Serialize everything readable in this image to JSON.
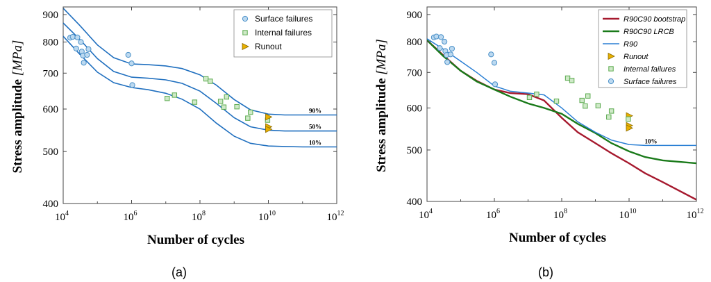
{
  "chart_data": [
    {
      "type": "scatter",
      "panel_label": "(a)",
      "xlabel": "Number of cycles",
      "ylabel": "Stress amplitude",
      "ylabel_unit": "[MPa]",
      "xscale": "log",
      "yscale": "log",
      "xlim": [
        10000,
        1000000000000
      ],
      "ylim": [
        400,
        930
      ],
      "xticks": [
        {
          "base": "10",
          "exp": "4",
          "value": 10000
        },
        {
          "base": "10",
          "exp": "6",
          "value": 1000000
        },
        {
          "base": "10",
          "exp": "8",
          "value": 100000000
        },
        {
          "base": "10",
          "exp": "10",
          "value": 10000000000
        },
        {
          "base": "10",
          "exp": "12",
          "value": 1000000000000
        }
      ],
      "yticks": [
        "400",
        "500",
        "600",
        "700",
        "800",
        "900"
      ],
      "legend_position": "top-right",
      "grid": false,
      "series": [
        {
          "name": "Surface failures",
          "marker": "circle",
          "color": "#4a90c8",
          "points": [
            [
              16000,
              815
            ],
            [
              19000,
              818
            ],
            [
              24000,
              778
            ],
            [
              26000,
              816
            ],
            [
              33000,
              800
            ],
            [
              35000,
              768
            ],
            [
              38000,
              755
            ],
            [
              40000,
              732
            ],
            [
              50000,
              757
            ],
            [
              55000,
              776
            ],
            [
              800000,
              757
            ],
            [
              1000000,
              730
            ],
            [
              1050000,
              665
            ]
          ]
        },
        {
          "name": "Internal failures",
          "marker": "square",
          "color": "#5aaa4e",
          "points": [
            [
              11000000,
              628
            ],
            [
              18000000,
              637
            ],
            [
              70000000,
              618
            ],
            [
              150000000,
              683
            ],
            [
              200000000,
              676
            ],
            [
              400000000,
              620
            ],
            [
              500000000,
              605
            ],
            [
              600000000,
              632
            ],
            [
              1200000000,
              606
            ],
            [
              2500000000,
              577
            ],
            [
              3000000000,
              592
            ],
            [
              9500000000,
              572
            ]
          ]
        },
        {
          "name": "Runout",
          "marker": "triangle-right",
          "color": "#e8b000",
          "points": [
            [
              10000000000,
              580
            ],
            [
              10000000000,
              556
            ],
            [
              10000000000,
              550
            ]
          ]
        }
      ],
      "curves": [
        {
          "label": "90%",
          "color": "#1f6fbf",
          "points": [
            [
              10000,
              925
            ],
            [
              30000,
              860
            ],
            [
              100000,
              790
            ],
            [
              300000,
              748
            ],
            [
              1000000,
              728
            ],
            [
              3000000,
              726
            ],
            [
              10000000,
              722
            ],
            [
              30000000,
              714
            ],
            [
              100000000,
              695
            ],
            [
              300000000,
              665
            ],
            [
              1000000000,
              625
            ],
            [
              3000000000,
              598
            ],
            [
              10000000000,
              587
            ],
            [
              30000000000,
              585
            ],
            [
              100000000000,
              585
            ],
            [
              1000000000000,
              585
            ]
          ]
        },
        {
          "label": "50%",
          "color": "#1f6fbf",
          "points": [
            [
              10000,
              868
            ],
            [
              30000,
              810
            ],
            [
              100000,
              745
            ],
            [
              300000,
              705
            ],
            [
              1000000,
              688
            ],
            [
              3000000,
              685
            ],
            [
              10000000,
              680
            ],
            [
              30000000,
              670
            ],
            [
              100000000,
              648
            ],
            [
              300000000,
              615
            ],
            [
              1000000000,
              578
            ],
            [
              3000000000,
              556
            ],
            [
              10000000000,
              548
            ],
            [
              30000000000,
              546
            ],
            [
              100000000000,
              546
            ],
            [
              1000000000000,
              546
            ]
          ]
        },
        {
          "label": "10%",
          "color": "#1f6fbf",
          "points": [
            [
              10000,
              820
            ],
            [
              30000,
              760
            ],
            [
              100000,
              703
            ],
            [
              300000,
              672
            ],
            [
              1000000,
              658
            ],
            [
              3000000,
              652
            ],
            [
              10000000,
              642
            ],
            [
              30000000,
              626
            ],
            [
              100000000,
              600
            ],
            [
              300000000,
              565
            ],
            [
              1000000000,
              534
            ],
            [
              3000000000,
              518
            ],
            [
              10000000000,
              512
            ],
            [
              30000000000,
              511
            ],
            [
              100000000000,
              510
            ],
            [
              1000000000000,
              510
            ]
          ]
        }
      ]
    },
    {
      "type": "line",
      "panel_label": "(b)",
      "xlabel": "Number of cycles",
      "ylabel": "Stress amplitude",
      "ylabel_unit": "[MPa]",
      "xscale": "log",
      "yscale": "log",
      "xlim": [
        10000,
        1000000000000
      ],
      "ylim": [
        400,
        930
      ],
      "xticks": [
        {
          "base": "10",
          "exp": "4",
          "value": 10000
        },
        {
          "base": "10",
          "exp": "6",
          "value": 1000000
        },
        {
          "base": "10",
          "exp": "8",
          "value": 100000000
        },
        {
          "base": "10",
          "exp": "10",
          "value": 10000000000
        },
        {
          "base": "10",
          "exp": "12",
          "value": 1000000000000
        }
      ],
      "yticks": [
        "400",
        "500",
        "600",
        "700",
        "800",
        "900"
      ],
      "legend_position": "top-right",
      "grid": false,
      "series": [
        {
          "name": "R90C90 bootstrap",
          "style": "line",
          "color": "#a6192e",
          "points": [
            [
              10000,
              805
            ],
            [
              30000,
              755
            ],
            [
              100000,
              705
            ],
            [
              300000,
              675
            ],
            [
              1000000,
              650
            ],
            [
              3000000,
              640
            ],
            [
              10000000,
              637
            ],
            [
              30000000,
              620
            ],
            [
              100000000,
              575
            ],
            [
              300000000,
              540
            ],
            [
              1000000000,
              515
            ],
            [
              3000000000,
              493
            ],
            [
              10000000000,
              472
            ],
            [
              30000000000,
              452
            ],
            [
              100000000000,
              435
            ],
            [
              1000000000000,
              403
            ]
          ]
        },
        {
          "name": "R90C90 LRCB",
          "style": "line",
          "color": "#1a7a1a",
          "points": [
            [
              10000,
              805
            ],
            [
              30000,
              752
            ],
            [
              100000,
              705
            ],
            [
              300000,
              673
            ],
            [
              1000000,
              650
            ],
            [
              3000000,
              630
            ],
            [
              10000000,
              612
            ],
            [
              30000000,
              600
            ],
            [
              100000000,
              585
            ],
            [
              300000000,
              560
            ],
            [
              1000000000,
              538
            ],
            [
              3000000000,
              515
            ],
            [
              10000000000,
              497
            ],
            [
              30000000000,
              485
            ],
            [
              100000000000,
              478
            ],
            [
              1000000000000,
              472
            ]
          ]
        },
        {
          "name": "R90",
          "style": "line",
          "color": "#2a7fd4",
          "points": [
            [
              10000,
              810
            ],
            [
              30000,
              775
            ],
            [
              100000,
              735
            ],
            [
              300000,
              700
            ],
            [
              1000000,
              660
            ],
            [
              3000000,
              645
            ],
            [
              10000000,
              640
            ],
            [
              30000000,
              635
            ],
            [
              100000000,
              600
            ],
            [
              300000000,
              565
            ],
            [
              1000000000,
              540
            ],
            [
              3000000000,
              522
            ],
            [
              10000000000,
              512
            ],
            [
              30000000000,
              510
            ],
            [
              100000000000,
              510
            ],
            [
              1000000000000,
              510
            ]
          ]
        },
        {
          "name": "Runout",
          "style": "marker",
          "marker": "triangle-right",
          "color": "#e8b000",
          "points": [
            [
              10000000000,
              580
            ],
            [
              10000000000,
              556
            ],
            [
              10000000000,
              550
            ]
          ]
        },
        {
          "name": "Internal failures",
          "style": "marker",
          "marker": "square",
          "color": "#5aaa4e",
          "points": [
            [
              11000000,
              628
            ],
            [
              18000000,
              637
            ],
            [
              70000000,
              618
            ],
            [
              150000000,
              683
            ],
            [
              200000000,
              676
            ],
            [
              400000000,
              620
            ],
            [
              500000000,
              605
            ],
            [
              600000000,
              632
            ],
            [
              1200000000,
              606
            ],
            [
              2500000000,
              577
            ],
            [
              3000000000,
              592
            ],
            [
              9500000000,
              572
            ]
          ]
        },
        {
          "name": "Surface failures",
          "style": "marker",
          "marker": "circle",
          "color": "#4a90c8",
          "points": [
            [
              16000,
              815
            ],
            [
              19000,
              818
            ],
            [
              24000,
              778
            ],
            [
              26000,
              816
            ],
            [
              33000,
              800
            ],
            [
              35000,
              768
            ],
            [
              38000,
              755
            ],
            [
              40000,
              732
            ],
            [
              50000,
              757
            ],
            [
              55000,
              776
            ],
            [
              800000,
              757
            ],
            [
              1000000,
              730
            ],
            [
              1050000,
              665
            ]
          ]
        }
      ],
      "annotations": [
        {
          "text": "10%",
          "x": 100000000000,
          "y": 510
        }
      ]
    }
  ]
}
